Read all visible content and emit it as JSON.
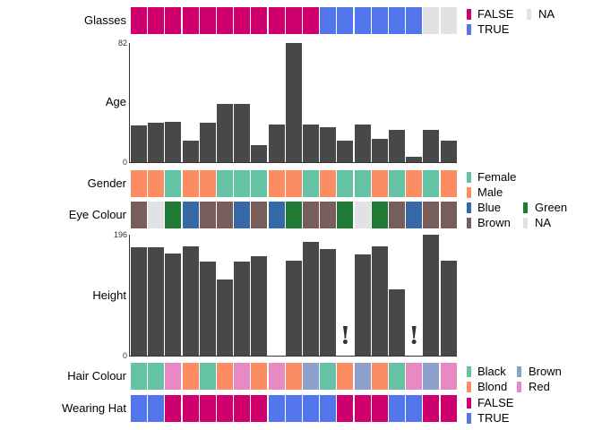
{
  "chart_data": [
    {
      "type": "heatmap",
      "title": "Glasses",
      "values": [
        "FALSE",
        "FALSE",
        "FALSE",
        "FALSE",
        "FALSE",
        "FALSE",
        "FALSE",
        "FALSE",
        "FALSE",
        "FALSE",
        "FALSE",
        "TRUE",
        "TRUE",
        "TRUE",
        "TRUE",
        "TRUE",
        "TRUE",
        "NA",
        "NA"
      ],
      "colors": {
        "FALSE": "#CE006E",
        "TRUE": "#5476EC",
        "NA": "#E2E2E2"
      },
      "legend": [
        [
          {
            "label": "FALSE",
            "color": "#CE006E"
          },
          {
            "label": "TRUE",
            "color": "#5476EC"
          }
        ],
        [
          {
            "label": "NA",
            "color": "#E2E2E2"
          }
        ]
      ]
    },
    {
      "type": "bar",
      "title": "Age",
      "values": [
        25,
        27,
        28,
        15,
        27,
        40,
        40,
        12,
        26,
        82,
        26,
        24,
        15,
        26,
        16,
        22,
        4,
        22,
        15
      ],
      "ylim": [
        0,
        82
      ],
      "ytick_labels": {
        "min": "0",
        "max": "82"
      },
      "bar_color": "#484848"
    },
    {
      "type": "heatmap",
      "title": "Gender",
      "values": [
        "Male",
        "Male",
        "Female",
        "Male",
        "Male",
        "Female",
        "Female",
        "Female",
        "Male",
        "Male",
        "Female",
        "Male",
        "Female",
        "Female",
        "Male",
        "Female",
        "Male",
        "Female",
        "Male"
      ],
      "colors": {
        "Female": "#66C2A5",
        "Male": "#FC8D62"
      },
      "legend": [
        [
          {
            "label": "Female",
            "color": "#66C2A5"
          },
          {
            "label": "Male",
            "color": "#FC8D62"
          }
        ]
      ]
    },
    {
      "type": "heatmap",
      "title": "Eye Colour",
      "values": [
        "Brown",
        "NA",
        "Green",
        "Blue",
        "Brown",
        "Brown",
        "Blue",
        "Brown",
        "Blue",
        "Green",
        "Brown",
        "Brown",
        "Green",
        "NA",
        "Green",
        "Brown",
        "Blue",
        "Brown",
        "Brown"
      ],
      "colors": {
        "Blue": "#3569A8",
        "Brown": "#795C5C",
        "Green": "#1E7A34",
        "NA": "#E2E2E2"
      },
      "legend": [
        [
          {
            "label": "Blue",
            "color": "#3569A8"
          },
          {
            "label": "Brown",
            "color": "#795C5C"
          }
        ],
        [
          {
            "label": "Green",
            "color": "#1E7A34"
          },
          {
            "label": "NA",
            "color": "#E2E2E2"
          }
        ]
      ]
    },
    {
      "type": "bar",
      "title": "Height",
      "values": [
        176,
        176,
        165,
        177,
        152,
        123,
        152,
        161,
        null,
        154,
        184,
        173,
        null,
        164,
        177,
        107,
        null,
        196,
        154
      ],
      "ylim": [
        0,
        196
      ],
      "ytick_labels": {
        "min": "0",
        "max": "196"
      },
      "bar_color": "#484848",
      "missing_flag_symbol": "!",
      "missing_flag_columns": [
        13,
        17
      ]
    },
    {
      "type": "heatmap",
      "title": "Hair Colour",
      "values": [
        "Black",
        "Black",
        "Red",
        "Blond",
        "Black",
        "Blond",
        "Red",
        "Blond",
        "Red",
        "Blond",
        "Brown",
        "Black",
        "Blond",
        "Brown",
        "Blond",
        "Black",
        "Red",
        "Brown",
        "Red"
      ],
      "colors": {
        "Black": "#66C2A5",
        "Blond": "#FC8D62",
        "Brown": "#8DA0CB",
        "Red": "#E78AC3"
      },
      "legend": [
        [
          {
            "label": "Black",
            "color": "#66C2A5"
          },
          {
            "label": "Blond",
            "color": "#FC8D62"
          }
        ],
        [
          {
            "label": "Brown",
            "color": "#8DA0CB"
          },
          {
            "label": "Red",
            "color": "#E78AC3"
          }
        ]
      ]
    },
    {
      "type": "heatmap",
      "title": "Wearing Hat",
      "values": [
        "TRUE",
        "TRUE",
        "FALSE",
        "FALSE",
        "FALSE",
        "FALSE",
        "FALSE",
        "FALSE",
        "TRUE",
        "TRUE",
        "TRUE",
        "TRUE",
        "FALSE",
        "FALSE",
        "FALSE",
        "TRUE",
        "TRUE",
        "FALSE",
        "FALSE"
      ],
      "colors": {
        "FALSE": "#CE006E",
        "TRUE": "#5476EC"
      },
      "legend": [
        [
          {
            "label": "FALSE",
            "color": "#CE006E"
          },
          {
            "label": "TRUE",
            "color": "#5476EC"
          }
        ]
      ]
    }
  ]
}
